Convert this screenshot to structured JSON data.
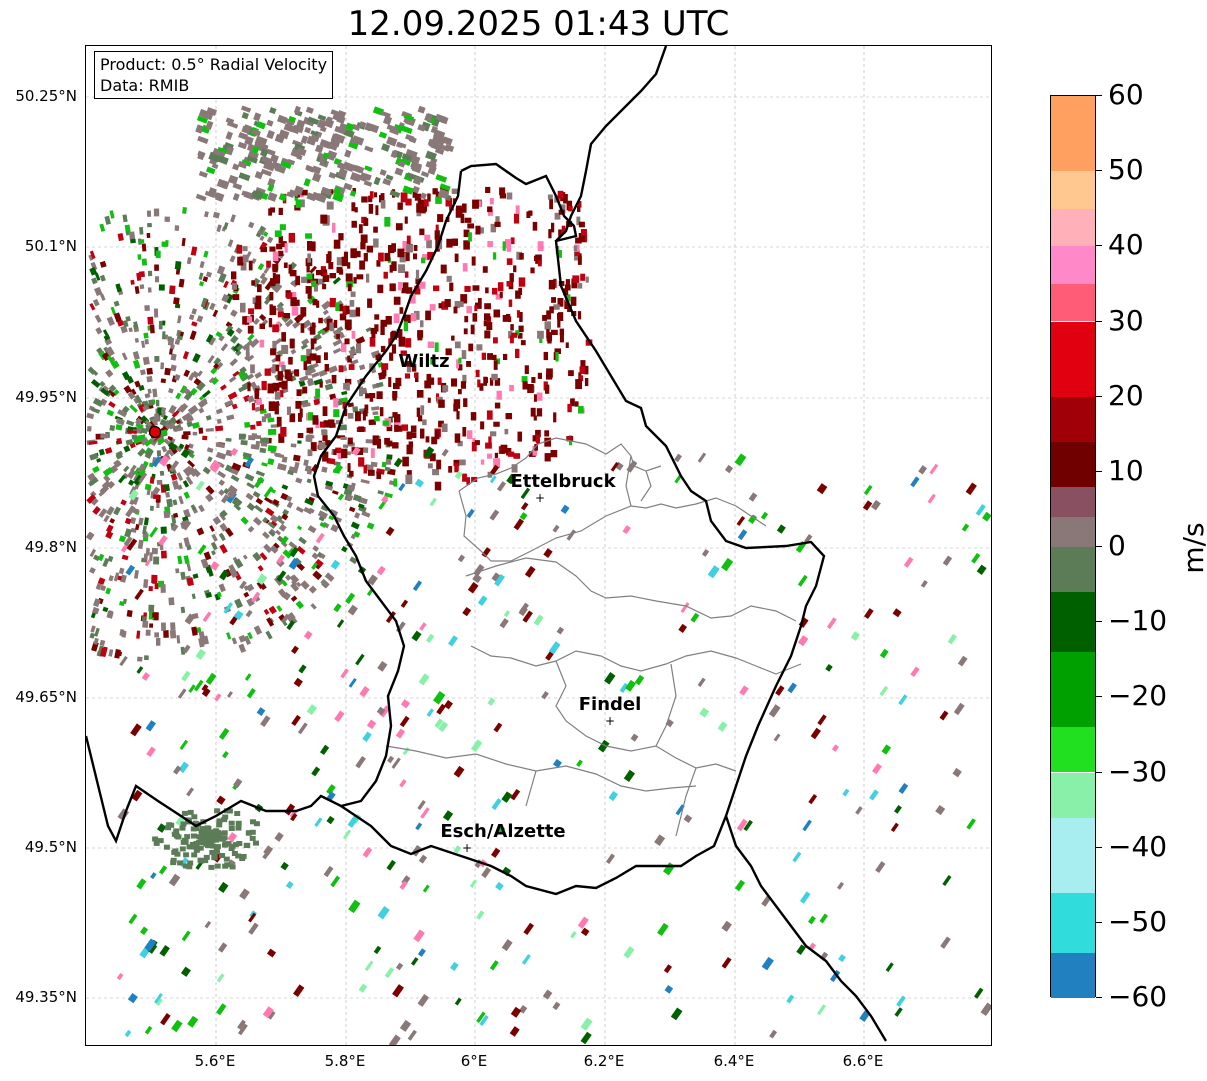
{
  "title": "12.09.2025 01:43 UTC",
  "info": {
    "product": "Product: 0.5° Radial Velocity",
    "data": "Data: RMIB"
  },
  "lat_ticks": [
    "50.25°N",
    "50.1°N",
    "49.95°N",
    "49.8°N",
    "49.65°N",
    "49.5°N",
    "49.35°N"
  ],
  "lon_ticks": [
    "5.6°E",
    "5.8°E",
    "6°E",
    "6.2°E",
    "6.4°E",
    "6.6°E"
  ],
  "cities": [
    {
      "name": "Wiltz",
      "lon": 5.93,
      "lat": 49.97,
      "label": "Wiltz"
    },
    {
      "name": "Ettelbruck",
      "lon": 6.1,
      "lat": 49.85,
      "label": "Ettelbruck"
    },
    {
      "name": "Findel",
      "lon": 6.21,
      "lat": 49.63,
      "label": "Findel"
    },
    {
      "name": "Esch/Alzette",
      "lon": 5.99,
      "lat": 49.5,
      "label": "Esch/Alzette"
    }
  ],
  "radar_site": {
    "lon": 5.505,
    "lat": 49.915,
    "color": "#e00000"
  },
  "colorbar": {
    "label": "m/s",
    "min": -60,
    "max": 60,
    "ticks": [
      "60",
      "50",
      "40",
      "30",
      "20",
      "10",
      "0",
      "−10",
      "−20",
      "−30",
      "−40",
      "−50",
      "−60"
    ],
    "tick_values": [
      60,
      50,
      40,
      30,
      20,
      10,
      0,
      -10,
      -20,
      -30,
      -40,
      -50,
      -60
    ],
    "stops": [
      {
        "from": 50,
        "to": 60,
        "color": "#ffa060"
      },
      {
        "from": 45,
        "to": 50,
        "color": "#ffc890"
      },
      {
        "from": 40,
        "to": 45,
        "color": "#ffb0b8"
      },
      {
        "from": 35,
        "to": 40,
        "color": "#ff88c8"
      },
      {
        "from": 30,
        "to": 35,
        "color": "#ff5c78"
      },
      {
        "from": 20,
        "to": 30,
        "color": "#e00010"
      },
      {
        "from": 14,
        "to": 20,
        "color": "#a00008"
      },
      {
        "from": 8,
        "to": 14,
        "color": "#700000"
      },
      {
        "from": 4,
        "to": 8,
        "color": "#885060"
      },
      {
        "from": 0,
        "to": 4,
        "color": "#8a7878"
      },
      {
        "from": -6,
        "to": 0,
        "color": "#5c7c58"
      },
      {
        "from": -14,
        "to": -6,
        "color": "#006000"
      },
      {
        "from": -24,
        "to": -14,
        "color": "#00a000"
      },
      {
        "from": -30,
        "to": -24,
        "color": "#20e020"
      },
      {
        "from": -36,
        "to": -30,
        "color": "#88f0a8"
      },
      {
        "from": -46,
        "to": -36,
        "color": "#a8eef0"
      },
      {
        "from": -54,
        "to": -46,
        "color": "#30dcdc"
      },
      {
        "from": -60,
        "to": -54,
        "color": "#2080c0"
      }
    ]
  },
  "map_extent": {
    "lon_min": 5.4,
    "lon_max": 6.8,
    "lat_min": 49.3,
    "lat_max": 50.3
  },
  "colors": {
    "outbound_dark": "#7a0000",
    "outbound_red": "#c00010",
    "near_zero": "#8a7878",
    "inbound_dark": "#5c7c58",
    "inbound_green": "#10c010",
    "pink": "#ff7ab0",
    "cyan": "#40d0e0",
    "border": "#000000",
    "canton_lines": "#808080",
    "grid": "#b0b0b0"
  }
}
